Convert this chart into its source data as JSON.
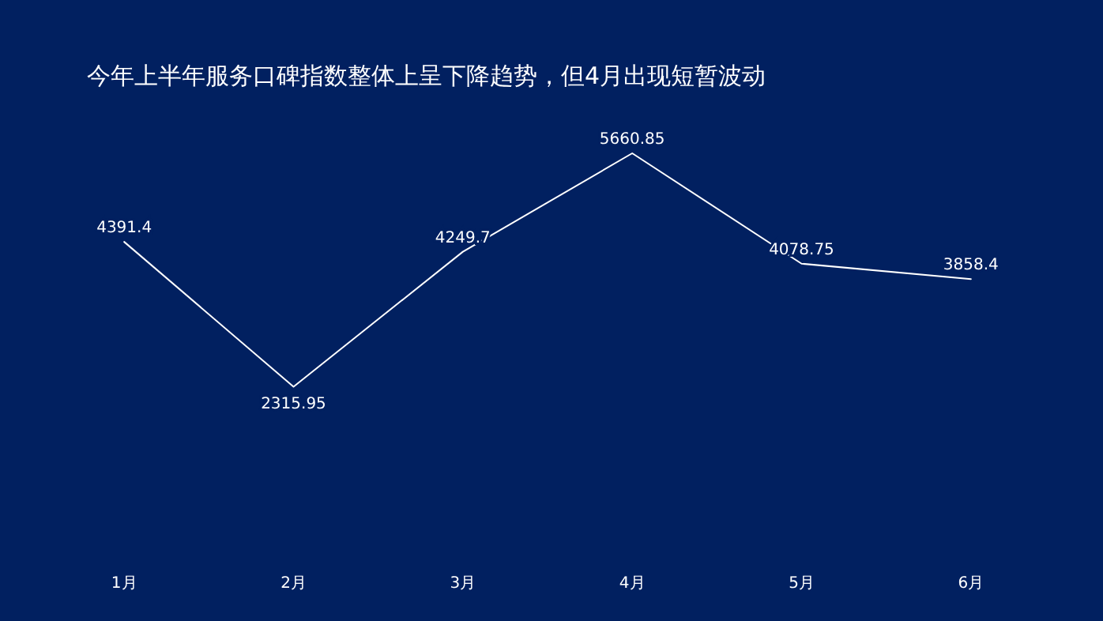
{
  "chart_data": {
    "type": "line",
    "title": "今年上半年服务口碑指数整体上呈下降趋势，但4月出现短暂波动",
    "categories": [
      "1月",
      "2月",
      "3月",
      "4月",
      "5月",
      "6月"
    ],
    "series": [
      {
        "color": "#ffffff",
        "values": [
          4391.4,
          2315.95,
          4249.7,
          5660.85,
          4078.75,
          3858.4
        ]
      }
    ],
    "data_labels": true,
    "marker": "none",
    "line_style": "solid"
  }
}
